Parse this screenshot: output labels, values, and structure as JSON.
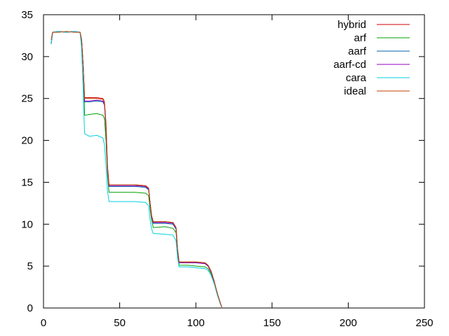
{
  "chart_data": {
    "type": "line",
    "title": "",
    "xlabel": "",
    "ylabel": "",
    "xlim": [
      0,
      250
    ],
    "ylim": [
      0,
      35
    ],
    "xticks": [
      0,
      50,
      100,
      150,
      200,
      250
    ],
    "yticks": [
      0,
      5,
      10,
      15,
      20,
      25,
      30,
      35
    ],
    "grid": false,
    "legend": "top-right",
    "series": [
      {
        "name": "hybrid",
        "color": "#d00000",
        "points": [
          [
            5,
            31.5
          ],
          [
            6,
            32.9
          ],
          [
            10,
            33.0
          ],
          [
            15,
            32.9
          ],
          [
            20,
            33.0
          ],
          [
            24,
            32.9
          ],
          [
            25,
            32.0
          ],
          [
            26,
            29.0
          ],
          [
            27,
            25.1
          ],
          [
            30,
            25.1
          ],
          [
            35,
            25.1
          ],
          [
            39,
            25.0
          ],
          [
            40,
            24.6
          ],
          [
            41,
            22.0
          ],
          [
            42,
            17.0
          ],
          [
            43,
            14.7
          ],
          [
            50,
            14.7
          ],
          [
            60,
            14.7
          ],
          [
            67,
            14.6
          ],
          [
            69,
            14.3
          ],
          [
            70,
            12.5
          ],
          [
            71,
            11.0
          ],
          [
            72,
            10.3
          ],
          [
            80,
            10.3
          ],
          [
            85,
            10.2
          ],
          [
            87,
            9.6
          ],
          [
            88,
            7.0
          ],
          [
            89,
            5.5
          ],
          [
            95,
            5.5
          ],
          [
            100,
            5.5
          ],
          [
            106,
            5.4
          ],
          [
            108,
            5.1
          ],
          [
            110,
            4.4
          ],
          [
            112,
            3.2
          ],
          [
            114,
            1.8
          ],
          [
            116,
            0.6
          ],
          [
            117,
            0.1
          ]
        ]
      },
      {
        "name": "arf",
        "color": "#00a000",
        "points": [
          [
            5,
            31.5
          ],
          [
            6,
            32.9
          ],
          [
            10,
            33.0
          ],
          [
            15,
            32.9
          ],
          [
            20,
            33.0
          ],
          [
            24,
            32.9
          ],
          [
            25,
            32.0
          ],
          [
            26,
            29.0
          ],
          [
            27,
            23.0
          ],
          [
            30,
            23.1
          ],
          [
            35,
            23.2
          ],
          [
            39,
            23.0
          ],
          [
            40,
            22.6
          ],
          [
            41,
            20.0
          ],
          [
            42,
            16.0
          ],
          [
            43,
            13.8
          ],
          [
            50,
            13.8
          ],
          [
            60,
            13.8
          ],
          [
            67,
            13.7
          ],
          [
            69,
            13.4
          ],
          [
            70,
            11.8
          ],
          [
            71,
            10.5
          ],
          [
            72,
            9.6
          ],
          [
            80,
            9.7
          ],
          [
            85,
            9.5
          ],
          [
            87,
            9.0
          ],
          [
            88,
            6.6
          ],
          [
            89,
            5.1
          ],
          [
            95,
            5.1
          ],
          [
            100,
            5.0
          ],
          [
            106,
            4.9
          ],
          [
            108,
            4.7
          ],
          [
            110,
            4.1
          ],
          [
            112,
            3.0
          ],
          [
            114,
            1.7
          ],
          [
            116,
            0.6
          ],
          [
            117,
            0.1
          ]
        ]
      },
      {
        "name": "aarf",
        "color": "#0060b0",
        "points": [
          [
            5,
            31.5
          ],
          [
            6,
            32.9
          ],
          [
            10,
            33.0
          ],
          [
            15,
            32.9
          ],
          [
            20,
            33.0
          ],
          [
            24,
            32.9
          ],
          [
            25,
            32.0
          ],
          [
            26,
            29.0
          ],
          [
            27,
            24.6
          ],
          [
            30,
            24.6
          ],
          [
            35,
            24.7
          ],
          [
            39,
            24.6
          ],
          [
            40,
            24.2
          ],
          [
            41,
            21.5
          ],
          [
            42,
            16.5
          ],
          [
            43,
            14.5
          ],
          [
            50,
            14.5
          ],
          [
            60,
            14.5
          ],
          [
            67,
            14.4
          ],
          [
            69,
            14.1
          ],
          [
            70,
            12.3
          ],
          [
            71,
            10.8
          ],
          [
            72,
            10.1
          ],
          [
            80,
            10.1
          ],
          [
            85,
            10.0
          ],
          [
            87,
            9.4
          ],
          [
            88,
            6.8
          ],
          [
            89,
            5.4
          ],
          [
            95,
            5.4
          ],
          [
            100,
            5.4
          ],
          [
            106,
            5.3
          ],
          [
            108,
            5.0
          ],
          [
            110,
            4.3
          ],
          [
            112,
            3.1
          ],
          [
            114,
            1.8
          ],
          [
            116,
            0.6
          ],
          [
            117,
            0.1
          ]
        ]
      },
      {
        "name": "aarf-cd",
        "color": "#9000c0",
        "points": [
          [
            5,
            31.5
          ],
          [
            6,
            32.9
          ],
          [
            10,
            33.0
          ],
          [
            15,
            32.9
          ],
          [
            20,
            33.0
          ],
          [
            24,
            32.9
          ],
          [
            25,
            32.0
          ],
          [
            26,
            29.0
          ],
          [
            27,
            24.7
          ],
          [
            30,
            24.7
          ],
          [
            35,
            24.8
          ],
          [
            39,
            24.7
          ],
          [
            40,
            24.3
          ],
          [
            41,
            21.6
          ],
          [
            42,
            16.6
          ],
          [
            43,
            14.6
          ],
          [
            50,
            14.6
          ],
          [
            60,
            14.6
          ],
          [
            67,
            14.5
          ],
          [
            69,
            14.2
          ],
          [
            70,
            12.4
          ],
          [
            71,
            10.9
          ],
          [
            72,
            10.2
          ],
          [
            80,
            10.2
          ],
          [
            85,
            10.1
          ],
          [
            87,
            9.5
          ],
          [
            88,
            6.9
          ],
          [
            89,
            5.4
          ],
          [
            95,
            5.4
          ],
          [
            100,
            5.4
          ],
          [
            106,
            5.3
          ],
          [
            108,
            5.0
          ],
          [
            110,
            4.3
          ],
          [
            112,
            3.1
          ],
          [
            114,
            1.8
          ],
          [
            116,
            0.6
          ],
          [
            117,
            0.1
          ]
        ]
      },
      {
        "name": "cara",
        "color": "#00d0e0",
        "points": [
          [
            5,
            31.5
          ],
          [
            6,
            32.9
          ],
          [
            10,
            33.0
          ],
          [
            15,
            32.9
          ],
          [
            20,
            33.0
          ],
          [
            24,
            32.9
          ],
          [
            25,
            31.0
          ],
          [
            26,
            26.0
          ],
          [
            27,
            20.8
          ],
          [
            30,
            20.5
          ],
          [
            35,
            20.6
          ],
          [
            39,
            20.3
          ],
          [
            40,
            19.5
          ],
          [
            41,
            17.0
          ],
          [
            42,
            14.0
          ],
          [
            43,
            12.7
          ],
          [
            50,
            12.7
          ],
          [
            60,
            12.7
          ],
          [
            67,
            12.6
          ],
          [
            69,
            12.2
          ],
          [
            70,
            10.5
          ],
          [
            71,
            9.4
          ],
          [
            72,
            8.9
          ],
          [
            80,
            8.8
          ],
          [
            85,
            8.7
          ],
          [
            87,
            8.0
          ],
          [
            88,
            6.0
          ],
          [
            89,
            4.9
          ],
          [
            95,
            4.9
          ],
          [
            100,
            4.8
          ],
          [
            106,
            4.7
          ],
          [
            108,
            4.5
          ],
          [
            110,
            3.9
          ],
          [
            112,
            2.9
          ],
          [
            114,
            1.6
          ],
          [
            116,
            0.5
          ],
          [
            117,
            0.1
          ]
        ]
      },
      {
        "name": "ideal",
        "color": "#c04000",
        "points": [
          [
            5,
            32.0
          ],
          [
            6,
            32.9
          ],
          [
            10,
            32.9
          ],
          [
            15,
            33.0
          ],
          [
            20,
            32.9
          ],
          [
            24,
            32.9
          ],
          [
            25,
            32.0
          ],
          [
            26,
            29.0
          ],
          [
            27,
            25.0
          ],
          [
            30,
            25.0
          ],
          [
            35,
            25.0
          ],
          [
            39,
            24.9
          ],
          [
            40,
            24.5
          ],
          [
            41,
            21.9
          ],
          [
            42,
            16.9
          ],
          [
            43,
            14.7
          ],
          [
            50,
            14.7
          ],
          [
            60,
            14.7
          ],
          [
            67,
            14.6
          ],
          [
            69,
            14.3
          ],
          [
            70,
            12.5
          ],
          [
            71,
            11.0
          ],
          [
            72,
            10.3
          ],
          [
            80,
            10.3
          ],
          [
            85,
            10.2
          ],
          [
            87,
            9.6
          ],
          [
            88,
            7.0
          ],
          [
            89,
            5.5
          ],
          [
            95,
            5.5
          ],
          [
            100,
            5.5
          ],
          [
            106,
            5.4
          ],
          [
            108,
            5.1
          ],
          [
            110,
            4.4
          ],
          [
            112,
            3.2
          ],
          [
            114,
            1.8
          ],
          [
            116,
            0.6
          ],
          [
            117,
            0.1
          ]
        ]
      }
    ]
  }
}
